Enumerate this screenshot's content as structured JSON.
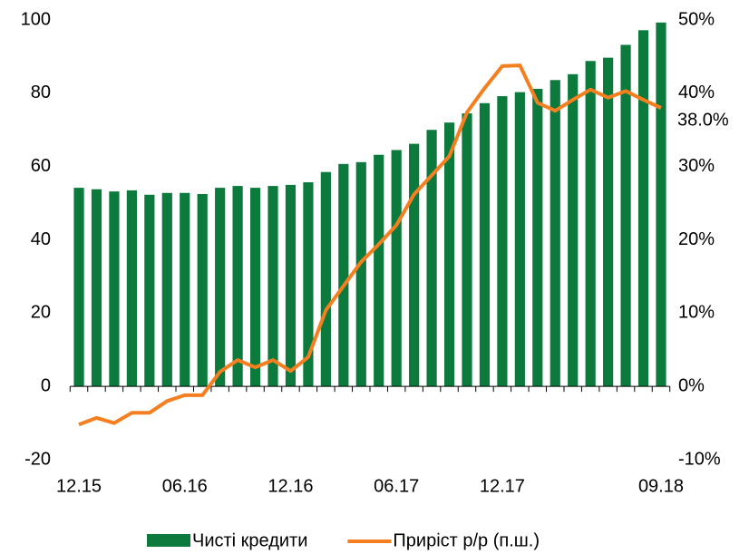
{
  "chart_data": {
    "type": "bar",
    "categories": [
      "12.15",
      null,
      null,
      null,
      null,
      null,
      "06.16",
      null,
      null,
      null,
      null,
      null,
      "12.16",
      null,
      null,
      null,
      null,
      null,
      "06.17",
      null,
      null,
      null,
      null,
      null,
      "12.17",
      null,
      null,
      null,
      null,
      null,
      null,
      null,
      null,
      "09.18"
    ],
    "series": [
      {
        "name": "Чисті кредити",
        "type": "bar",
        "color": "#0b7a3c",
        "values": [
          54.2,
          53.8,
          53.2,
          53.5,
          52.3,
          52.8,
          52.8,
          52.5,
          54.2,
          54.7,
          54.2,
          54.7,
          55.0,
          55.7,
          58.5,
          60.7,
          61.2,
          63.2,
          64.5,
          66.2,
          70.0,
          72.0,
          74.5,
          77.3,
          79.2,
          80.3,
          81.2,
          83.6,
          85.2,
          88.8,
          89.7,
          93.2,
          97.2,
          99.3
        ]
      },
      {
        "name": "Приріст р/р (п.ш.)",
        "type": "line",
        "axis": "y2",
        "color": "#f47f20",
        "values": [
          -5.2,
          -4.3,
          -5.0,
          -3.6,
          -3.6,
          -2.0,
          -1.2,
          -1.2,
          2.0,
          3.6,
          2.6,
          3.6,
          2.1,
          4.0,
          10.4,
          13.7,
          17.0,
          19.4,
          22.0,
          26.2,
          28.8,
          31.4,
          37.4,
          40.7,
          43.7,
          43.8,
          38.7,
          37.6,
          39.1,
          40.5,
          39.4,
          40.3,
          39.1,
          38.0
        ],
        "value_labels": [
          null,
          null,
          null,
          null,
          null,
          null,
          null,
          null,
          null,
          null,
          null,
          null,
          null,
          null,
          null,
          null,
          null,
          null,
          null,
          null,
          null,
          null,
          null,
          null,
          null,
          null,
          null,
          null,
          null,
          null,
          null,
          null,
          null,
          "38.0%"
        ]
      }
    ],
    "ylim": [
      -20,
      100
    ],
    "yticks": [
      -20,
      0,
      20,
      40,
      60,
      80,
      100
    ],
    "y2lim": [
      -10,
      50
    ],
    "y2ticks": [
      {
        "value": -10,
        "label": "-10%"
      },
      {
        "value": 0,
        "label": "0%"
      },
      {
        "value": 10,
        "label": "10%"
      },
      {
        "value": 20,
        "label": "20%"
      },
      {
        "value": 30,
        "label": "30%"
      },
      {
        "value": 40,
        "label": "40%"
      },
      {
        "value": 50,
        "label": "50%"
      }
    ],
    "grid": false,
    "legend": "bottom"
  }
}
